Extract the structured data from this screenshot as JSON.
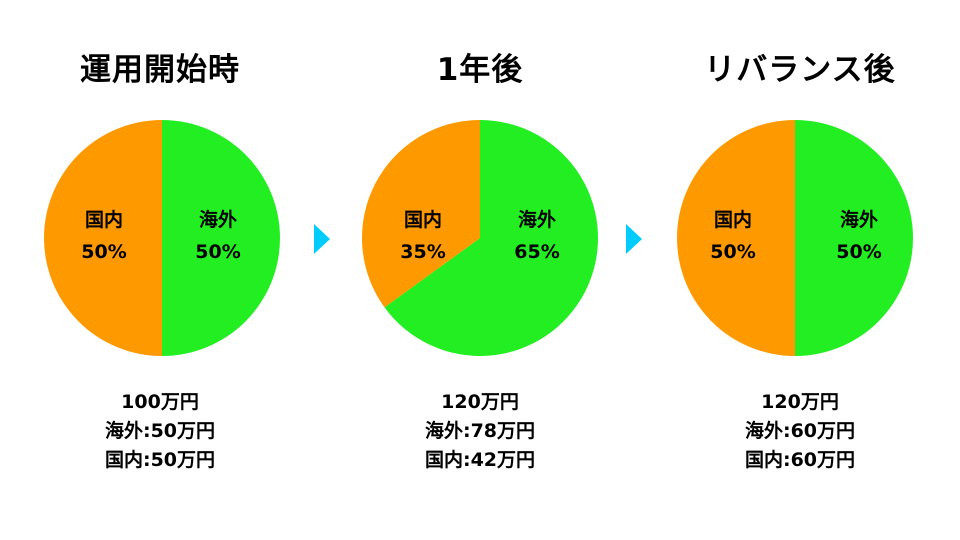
{
  "colors": {
    "overseas": "#22EE22",
    "domestic": "#FF9900",
    "arrow": "#00CCFF"
  },
  "chart_data": [
    {
      "type": "pie",
      "title": "運用開始時",
      "slices": [
        {
          "label": "海外",
          "percent_label": "50%",
          "value": 50,
          "color": "#22EE22"
        },
        {
          "label": "国内",
          "percent_label": "50%",
          "value": 50,
          "color": "#FF9900"
        }
      ],
      "summary": {
        "total": "100万円",
        "overseas": "海外:50万円",
        "domestic": "国内:50万円"
      }
    },
    {
      "type": "pie",
      "title": "1年後",
      "slices": [
        {
          "label": "海外",
          "percent_label": "65%",
          "value": 65,
          "color": "#22EE22"
        },
        {
          "label": "国内",
          "percent_label": "35%",
          "value": 35,
          "color": "#FF9900"
        }
      ],
      "summary": {
        "total": "120万円",
        "overseas": "海外:78万円",
        "domestic": "国内:42万円"
      }
    },
    {
      "type": "pie",
      "title": "リバランス後",
      "slices": [
        {
          "label": "海外",
          "percent_label": "50%",
          "value": 50,
          "color": "#22EE22"
        },
        {
          "label": "国内",
          "percent_label": "50%",
          "value": 50,
          "color": "#FF9900"
        }
      ],
      "summary": {
        "total": "120万円",
        "overseas": "海外:60万円",
        "domestic": "国内:60万円"
      }
    }
  ]
}
